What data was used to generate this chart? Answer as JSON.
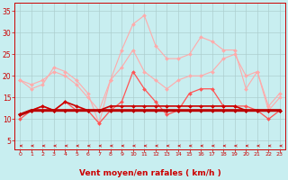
{
  "x": [
    0,
    1,
    2,
    3,
    4,
    5,
    6,
    7,
    8,
    9,
    10,
    11,
    12,
    13,
    14,
    15,
    16,
    17,
    18,
    19,
    20,
    21,
    22,
    23
  ],
  "series": [
    {
      "color": "#ffaaaa",
      "lw": 0.8,
      "marker": "D",
      "ms": 2.0,
      "values": [
        19,
        17,
        18,
        22,
        21,
        19,
        16,
        9,
        19,
        26,
        32,
        34,
        27,
        24,
        24,
        25,
        29,
        28,
        26,
        26,
        17,
        21,
        13,
        16
      ]
    },
    {
      "color": "#ffaaaa",
      "lw": 0.8,
      "marker": "D",
      "ms": 2.0,
      "values": [
        19,
        18,
        19,
        21,
        20,
        18,
        15,
        12,
        19,
        22,
        26,
        21,
        19,
        17,
        19,
        20,
        20,
        21,
        24,
        25,
        20,
        21,
        12,
        15
      ]
    },
    {
      "color": "#ff5555",
      "lw": 0.9,
      "marker": "D",
      "ms": 2.0,
      "values": [
        10,
        12,
        13,
        12,
        14,
        12,
        12,
        9,
        12,
        14,
        21,
        17,
        14,
        11,
        12,
        16,
        17,
        17,
        13,
        13,
        13,
        12,
        10,
        12
      ]
    },
    {
      "color": "#cc0000",
      "lw": 1.2,
      "marker": "D",
      "ms": 2.0,
      "values": [
        11,
        12,
        13,
        12,
        14,
        13,
        12,
        12,
        13,
        13,
        13,
        13,
        13,
        13,
        13,
        13,
        13,
        13,
        13,
        13,
        12,
        12,
        12,
        12
      ]
    },
    {
      "color": "#bb0000",
      "lw": 2.2,
      "marker": "D",
      "ms": 2.0,
      "values": [
        11,
        12,
        12,
        12,
        12,
        12,
        12,
        12,
        12,
        12,
        12,
        12,
        12,
        12,
        12,
        12,
        12,
        12,
        12,
        12,
        12,
        12,
        12,
        12
      ]
    }
  ],
  "xlim": [
    -0.5,
    23.5
  ],
  "ylim": [
    3,
    37
  ],
  "yticks": [
    5,
    10,
    15,
    20,
    25,
    30,
    35
  ],
  "xticks": [
    0,
    1,
    2,
    3,
    4,
    5,
    6,
    7,
    8,
    9,
    10,
    11,
    12,
    13,
    14,
    15,
    16,
    17,
    18,
    19,
    20,
    21,
    22,
    23
  ],
  "xlabel": "Vent moyen/en rafales ( km/h )",
  "bg_color": "#c8eef0",
  "grid_color": "#aacccc",
  "tick_color": "#cc0000",
  "label_color": "#cc0000",
  "arrow_color": "#cc0000",
  "spine_color": "#cc0000"
}
